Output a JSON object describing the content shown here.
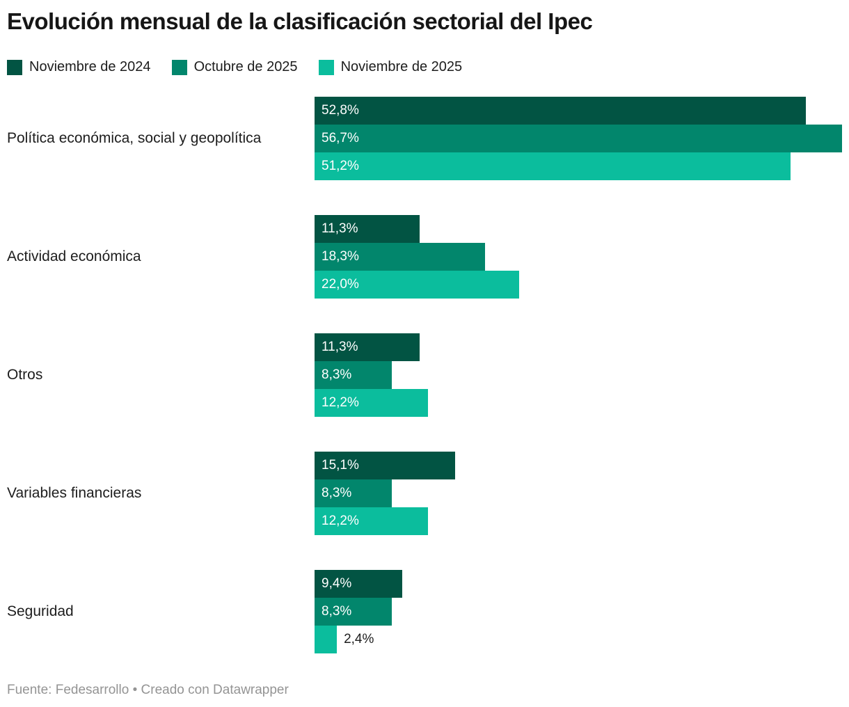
{
  "title": "Evolución mensual de la clasificación sectorial del Ipec",
  "footer": {
    "source_label": "Fuente: Fedesarrollo",
    "separator": "•",
    "attribution": "Creado con Datawrapper"
  },
  "chart_data": {
    "type": "bar",
    "orientation": "horizontal",
    "title": "Evolución mensual de la clasificación sectorial del Ipec",
    "categories": [
      "Política económica, social y geopolítica",
      "Actividad económica",
      "Otros",
      "Variables financieras",
      "Seguridad"
    ],
    "series": [
      {
        "name": "Noviembre de 2024",
        "color": "#025443",
        "values": [
          52.8,
          11.3,
          11.3,
          15.1,
          9.4
        ],
        "labels": [
          "52,8%",
          "11,3%",
          "11,3%",
          "15,1%",
          "9,4%"
        ]
      },
      {
        "name": "Octubre de 2025",
        "color": "#02866C",
        "values": [
          56.7,
          18.3,
          8.3,
          8.3,
          8.3
        ],
        "labels": [
          "56,7%",
          "18,3%",
          "8,3%",
          "8,3%",
          "8,3%"
        ]
      },
      {
        "name": "Noviembre de 2025",
        "color": "#0BBD9D",
        "values": [
          51.2,
          22.0,
          12.2,
          12.2,
          2.4
        ],
        "labels": [
          "51,2%",
          "22,0%",
          "12,2%",
          "12,2%",
          "2,4%"
        ]
      }
    ],
    "xlim": [
      0,
      56.7
    ],
    "value_suffix": "%",
    "grid": false,
    "legend_position": "top",
    "value_labels": "inside-start"
  }
}
